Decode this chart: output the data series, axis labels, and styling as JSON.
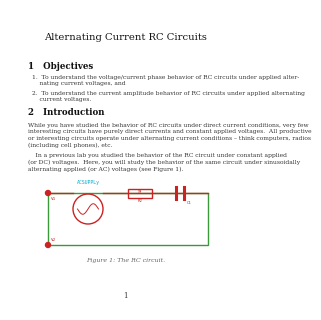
{
  "title": "Alternating Current RC Circuits",
  "section1_heading": "1   Objectives",
  "item1": "1.  To understand the voltage/current phase behavior of RC circuits under applied alter-\n    nating current voltages, and",
  "item2": "2.  To understand the current amplitude behavior of RC circuits under applied alternating\n    current voltages.",
  "section2_heading": "2   Introduction",
  "para1": "While you have studied the behavior of RC circuits under direct current conditions, very few\ninteresting circuits have purely direct currents and constant applied voltages.  All productive\nor interesting circuits operate under alternating current conditions – think computers, radios\n(including cell phones), etc.",
  "para2": "    In a previous lab you studied the behavior of the RC circuit under constant applied\n(or DC) voltages.  Here, you will study the behavior of the same circuit under sinusoidally\nalternating applied (or AC) voltages (see Figure 1).",
  "figure_caption": "Figure 1: The RC circuit.",
  "page_number": "1",
  "bg_color": "#ffffff",
  "text_color": "#333333",
  "heading_color": "#111111",
  "circuit_green": "#3a9a3a",
  "circuit_red": "#cc2222",
  "circuit_cyan": "#00aacc"
}
